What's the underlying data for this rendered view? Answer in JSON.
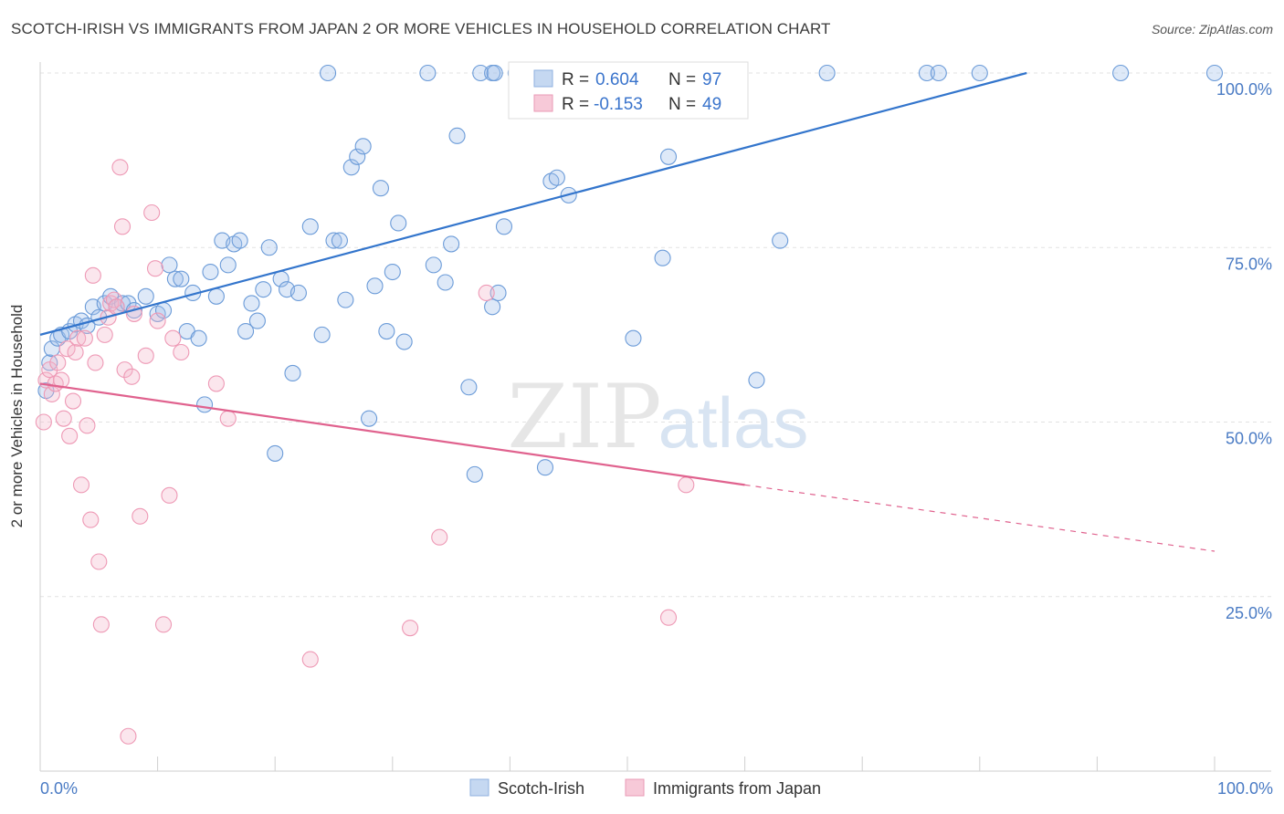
{
  "title": "SCOTCH-IRISH VS IMMIGRANTS FROM JAPAN 2 OR MORE VEHICLES IN HOUSEHOLD CORRELATION CHART",
  "source": "Source: ZipAtlas.com",
  "watermark": {
    "zip": "ZIP",
    "atlas": "atlas"
  },
  "chart_data": {
    "type": "scatter",
    "ylabel": "2 or more Vehicles in Household",
    "xlim": [
      0,
      100
    ],
    "ylim": [
      0,
      100
    ],
    "x_tick_labels": {
      "left": "0.0%",
      "right": "100.0%"
    },
    "y_ticks": [
      {
        "value": 25,
        "label": "25.0%"
      },
      {
        "value": 50,
        "label": "50.0%"
      },
      {
        "value": 75,
        "label": "75.0%"
      },
      {
        "value": 100,
        "label": "100.0%"
      }
    ],
    "grid": "horizontal dashed",
    "legend_placement": "top-center",
    "series": [
      {
        "name": "Scotch-Irish",
        "color": "#6b9bd8",
        "line_color": "#3375cc",
        "R": "0.604",
        "N": "97",
        "trend": {
          "x0": 0,
          "y0": 62.5,
          "x1": 84,
          "y1": 100,
          "dashed_to": null
        },
        "points": [
          [
            0.5,
            54.5
          ],
          [
            0.8,
            58.5
          ],
          [
            1,
            60.5
          ],
          [
            1.5,
            62
          ],
          [
            1.8,
            62.5
          ],
          [
            2.5,
            63
          ],
          [
            3,
            64
          ],
          [
            3.5,
            64.5
          ],
          [
            4,
            63.8
          ],
          [
            4.5,
            66.5
          ],
          [
            5,
            65
          ],
          [
            5.5,
            67
          ],
          [
            6,
            68
          ],
          [
            6.5,
            66.5
          ],
          [
            7,
            67
          ],
          [
            7.5,
            67
          ],
          [
            8,
            66
          ],
          [
            9,
            68
          ],
          [
            10,
            65.5
          ],
          [
            10.5,
            66
          ],
          [
            11,
            72.5
          ],
          [
            11.5,
            70.5
          ],
          [
            12,
            70.5
          ],
          [
            12.5,
            63
          ],
          [
            13,
            68.5
          ],
          [
            13.5,
            62
          ],
          [
            14,
            52.5
          ],
          [
            14.5,
            71.5
          ],
          [
            15,
            68
          ],
          [
            15.5,
            76
          ],
          [
            16,
            72.5
          ],
          [
            16.5,
            75.5
          ],
          [
            17,
            76
          ],
          [
            17.5,
            63
          ],
          [
            18,
            67
          ],
          [
            18.5,
            64.5
          ],
          [
            19,
            69
          ],
          [
            19.5,
            75
          ],
          [
            20,
            45.5
          ],
          [
            20.5,
            70.5
          ],
          [
            21,
            69
          ],
          [
            21.5,
            57
          ],
          [
            22,
            68.5
          ],
          [
            23,
            78
          ],
          [
            24,
            62.5
          ],
          [
            24.5,
            100
          ],
          [
            25,
            76
          ],
          [
            25.5,
            76
          ],
          [
            26,
            67.5
          ],
          [
            26.5,
            86.5
          ],
          [
            27,
            88
          ],
          [
            27.5,
            89.5
          ],
          [
            28,
            50.5
          ],
          [
            28.5,
            69.5
          ],
          [
            29,
            83.5
          ],
          [
            29.5,
            63
          ],
          [
            30,
            71.5
          ],
          [
            30.5,
            78.5
          ],
          [
            31,
            61.5
          ],
          [
            33,
            100
          ],
          [
            33.5,
            72.5
          ],
          [
            34.5,
            70
          ],
          [
            35,
            75.5
          ],
          [
            35.5,
            91
          ],
          [
            36.5,
            55
          ],
          [
            37,
            42.5
          ],
          [
            37.5,
            100
          ],
          [
            38.5,
            100
          ],
          [
            38.7,
            100
          ],
          [
            38.5,
            66.5
          ],
          [
            39,
            68.5
          ],
          [
            39.5,
            78
          ],
          [
            40.5,
            100
          ],
          [
            41.5,
            100
          ],
          [
            42,
            100
          ],
          [
            43,
            43.5
          ],
          [
            43.5,
            84.5
          ],
          [
            44,
            85
          ],
          [
            44.5,
            100
          ],
          [
            45,
            82.5
          ],
          [
            46,
            100
          ],
          [
            47,
            100
          ],
          [
            48,
            100
          ],
          [
            50.5,
            62
          ],
          [
            53,
            73.5
          ],
          [
            53.5,
            88
          ],
          [
            56,
            100
          ],
          [
            57,
            100
          ],
          [
            59,
            100
          ],
          [
            61,
            56
          ],
          [
            63,
            76
          ],
          [
            67,
            100
          ],
          [
            75.5,
            100
          ],
          [
            76.5,
            100
          ],
          [
            80,
            100
          ],
          [
            92,
            100
          ],
          [
            100,
            100
          ]
        ]
      },
      {
        "name": "Immigrants from Japan",
        "color": "#ee99b5",
        "line_color": "#e0628e",
        "R": "-0.153",
        "N": "49",
        "trend": {
          "x0": 0,
          "y0": 55.5,
          "x1": 60,
          "y1": 41,
          "dashed_to": {
            "x": 100,
            "y": 31.5
          }
        },
        "points": [
          [
            0.3,
            50
          ],
          [
            0.5,
            56
          ],
          [
            0.8,
            57.5
          ],
          [
            1,
            54
          ],
          [
            1.3,
            55.5
          ],
          [
            1.5,
            58.5
          ],
          [
            1.8,
            56
          ],
          [
            2,
            50.5
          ],
          [
            2.3,
            60.5
          ],
          [
            2.5,
            48
          ],
          [
            2.8,
            53
          ],
          [
            3,
            60
          ],
          [
            3.2,
            62
          ],
          [
            3.5,
            41
          ],
          [
            3.8,
            62
          ],
          [
            4,
            49.5
          ],
          [
            4.3,
            36
          ],
          [
            4.5,
            71
          ],
          [
            4.7,
            58.5
          ],
          [
            5,
            30
          ],
          [
            5.2,
            21
          ],
          [
            5.5,
            62.5
          ],
          [
            5.8,
            65
          ],
          [
            6,
            67
          ],
          [
            6.3,
            67.5
          ],
          [
            6.5,
            66.5
          ],
          [
            6.8,
            86.5
          ],
          [
            7,
            78
          ],
          [
            7.2,
            57.5
          ],
          [
            7.5,
            5
          ],
          [
            7.8,
            56.5
          ],
          [
            8,
            65.5
          ],
          [
            8.5,
            36.5
          ],
          [
            9,
            59.5
          ],
          [
            9.5,
            80
          ],
          [
            9.8,
            72
          ],
          [
            10,
            64.5
          ],
          [
            10.5,
            21
          ],
          [
            11,
            39.5
          ],
          [
            11.3,
            62
          ],
          [
            12,
            60
          ],
          [
            15,
            55.5
          ],
          [
            16,
            50.5
          ],
          [
            23,
            16
          ],
          [
            31.5,
            20.5
          ],
          [
            34,
            33.5
          ],
          [
            38,
            68.5
          ],
          [
            53.5,
            22
          ],
          [
            55,
            41
          ]
        ]
      }
    ]
  }
}
